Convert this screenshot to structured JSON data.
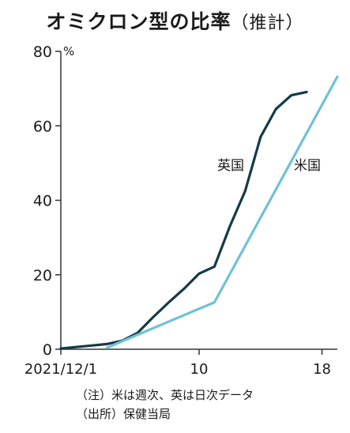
{
  "title": {
    "main": "オミクロン型の比率",
    "sub": "（推計）"
  },
  "notes": [
    "（注）米は週次、英は日次データ",
    "（出所）保健当局"
  ],
  "chart_data": {
    "type": "line",
    "title": "オミクロン型の比率（推計）",
    "y_unit": "%",
    "ylim": [
      0,
      80
    ],
    "yticks": [
      0,
      20,
      40,
      60,
      80
    ],
    "xlim": [
      1,
      19
    ],
    "xticks": [
      {
        "value": 1,
        "label": "2021/12/1"
      },
      {
        "value": 10,
        "label": "10"
      },
      {
        "value": 18,
        "label": "18"
      }
    ],
    "grid": false,
    "series": [
      {
        "name": "英国",
        "color": "#143a45",
        "x": [
          1,
          2,
          3,
          4,
          5,
          6,
          7,
          8,
          9,
          10,
          11,
          12,
          13,
          14,
          15,
          16,
          17
        ],
        "y": [
          0.2,
          0.6,
          1.0,
          1.4,
          2.3,
          4.4,
          8.6,
          12.5,
          16.2,
          20.3,
          22.2,
          33.0,
          42.5,
          57.0,
          64.5,
          68.2,
          69.1
        ]
      },
      {
        "name": "米国",
        "color": "#6fc2d4",
        "x": [
          4,
          11,
          19
        ],
        "y": [
          0.4,
          12.6,
          73.2
        ]
      }
    ]
  }
}
